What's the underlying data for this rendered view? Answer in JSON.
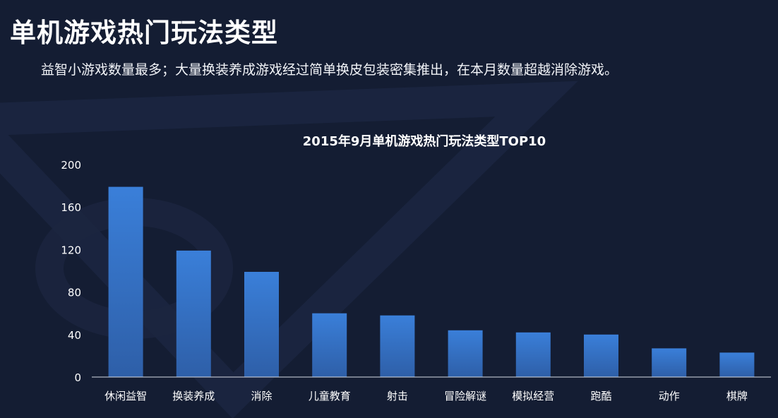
{
  "page": {
    "title": "单机游戏热门玩法类型",
    "subtitle": "益智小游戏数量最多；大量换装养成游戏经过简单换皮包装密集推出，在本月数量超越消除游戏。"
  },
  "colors": {
    "background": "#141d33",
    "bar_top": "#3a7fd9",
    "bar_bottom": "#2e5fa8",
    "text": "#ffffff",
    "axis_line": "#d9dde6"
  },
  "chart_data": {
    "type": "bar",
    "title": "2015年9月单机游戏热门玩法类型TOP10",
    "xlabel": "",
    "ylabel": "",
    "categories": [
      "休闲益智",
      "换装养成",
      "消除",
      "儿童教育",
      "射击",
      "冒险解谜",
      "模拟经营",
      "跑酷",
      "动作",
      "棋牌"
    ],
    "values": [
      179,
      119,
      99,
      60,
      58,
      44,
      42,
      40,
      27,
      23
    ],
    "ylim": [
      0,
      200
    ],
    "yticks": [
      0,
      40,
      80,
      120,
      160,
      200
    ],
    "grid": false,
    "legend": "none"
  }
}
